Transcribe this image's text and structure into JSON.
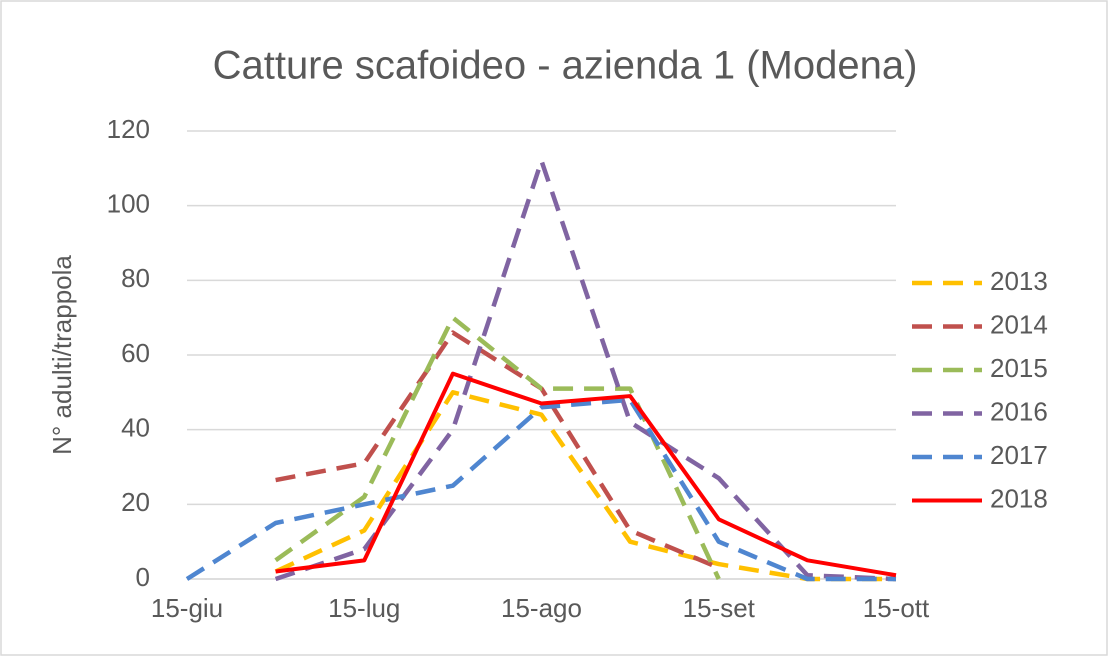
{
  "chart_data": {
    "type": "line",
    "title": "Catture scafoideo - azienda 1 (Modena)",
    "y_label": "N° adulti/trappola",
    "categories": [
      "15-giu",
      null,
      "15-lug",
      null,
      "15-ago",
      null,
      "15-set",
      null,
      "15-ott"
    ],
    "series": [
      {
        "name": "2013",
        "color": "#FFC000",
        "dashed": true,
        "values": [
          null,
          2,
          13,
          50,
          44,
          10,
          4,
          0,
          0
        ]
      },
      {
        "name": "2014",
        "color": "#C0504D",
        "dashed": true,
        "values": [
          null,
          26.5,
          31,
          66,
          51,
          13,
          3,
          null,
          null
        ]
      },
      {
        "name": "2015",
        "color": "#9BBB59",
        "dashed": true,
        "values": [
          null,
          5,
          22,
          70,
          51,
          51,
          0,
          null,
          null
        ]
      },
      {
        "name": "2016",
        "color": "#8064A2",
        "dashed": true,
        "values": [
          null,
          0,
          8,
          40,
          112,
          42,
          27,
          1,
          0
        ]
      },
      {
        "name": "2017",
        "color": "#4F86D0",
        "dashed": true,
        "values": [
          0,
          15,
          20,
          25,
          46,
          48,
          10,
          0,
          0
        ]
      },
      {
        "name": "2018",
        "color": "#FF0000",
        "dashed": false,
        "values": [
          null,
          2,
          5,
          55,
          47,
          49,
          16,
          5,
          1
        ]
      }
    ],
    "ylim": [
      0,
      120
    ],
    "yticks": [
      0,
      20,
      40,
      60,
      80,
      100,
      120
    ],
    "grid": true,
    "legend": "right"
  }
}
